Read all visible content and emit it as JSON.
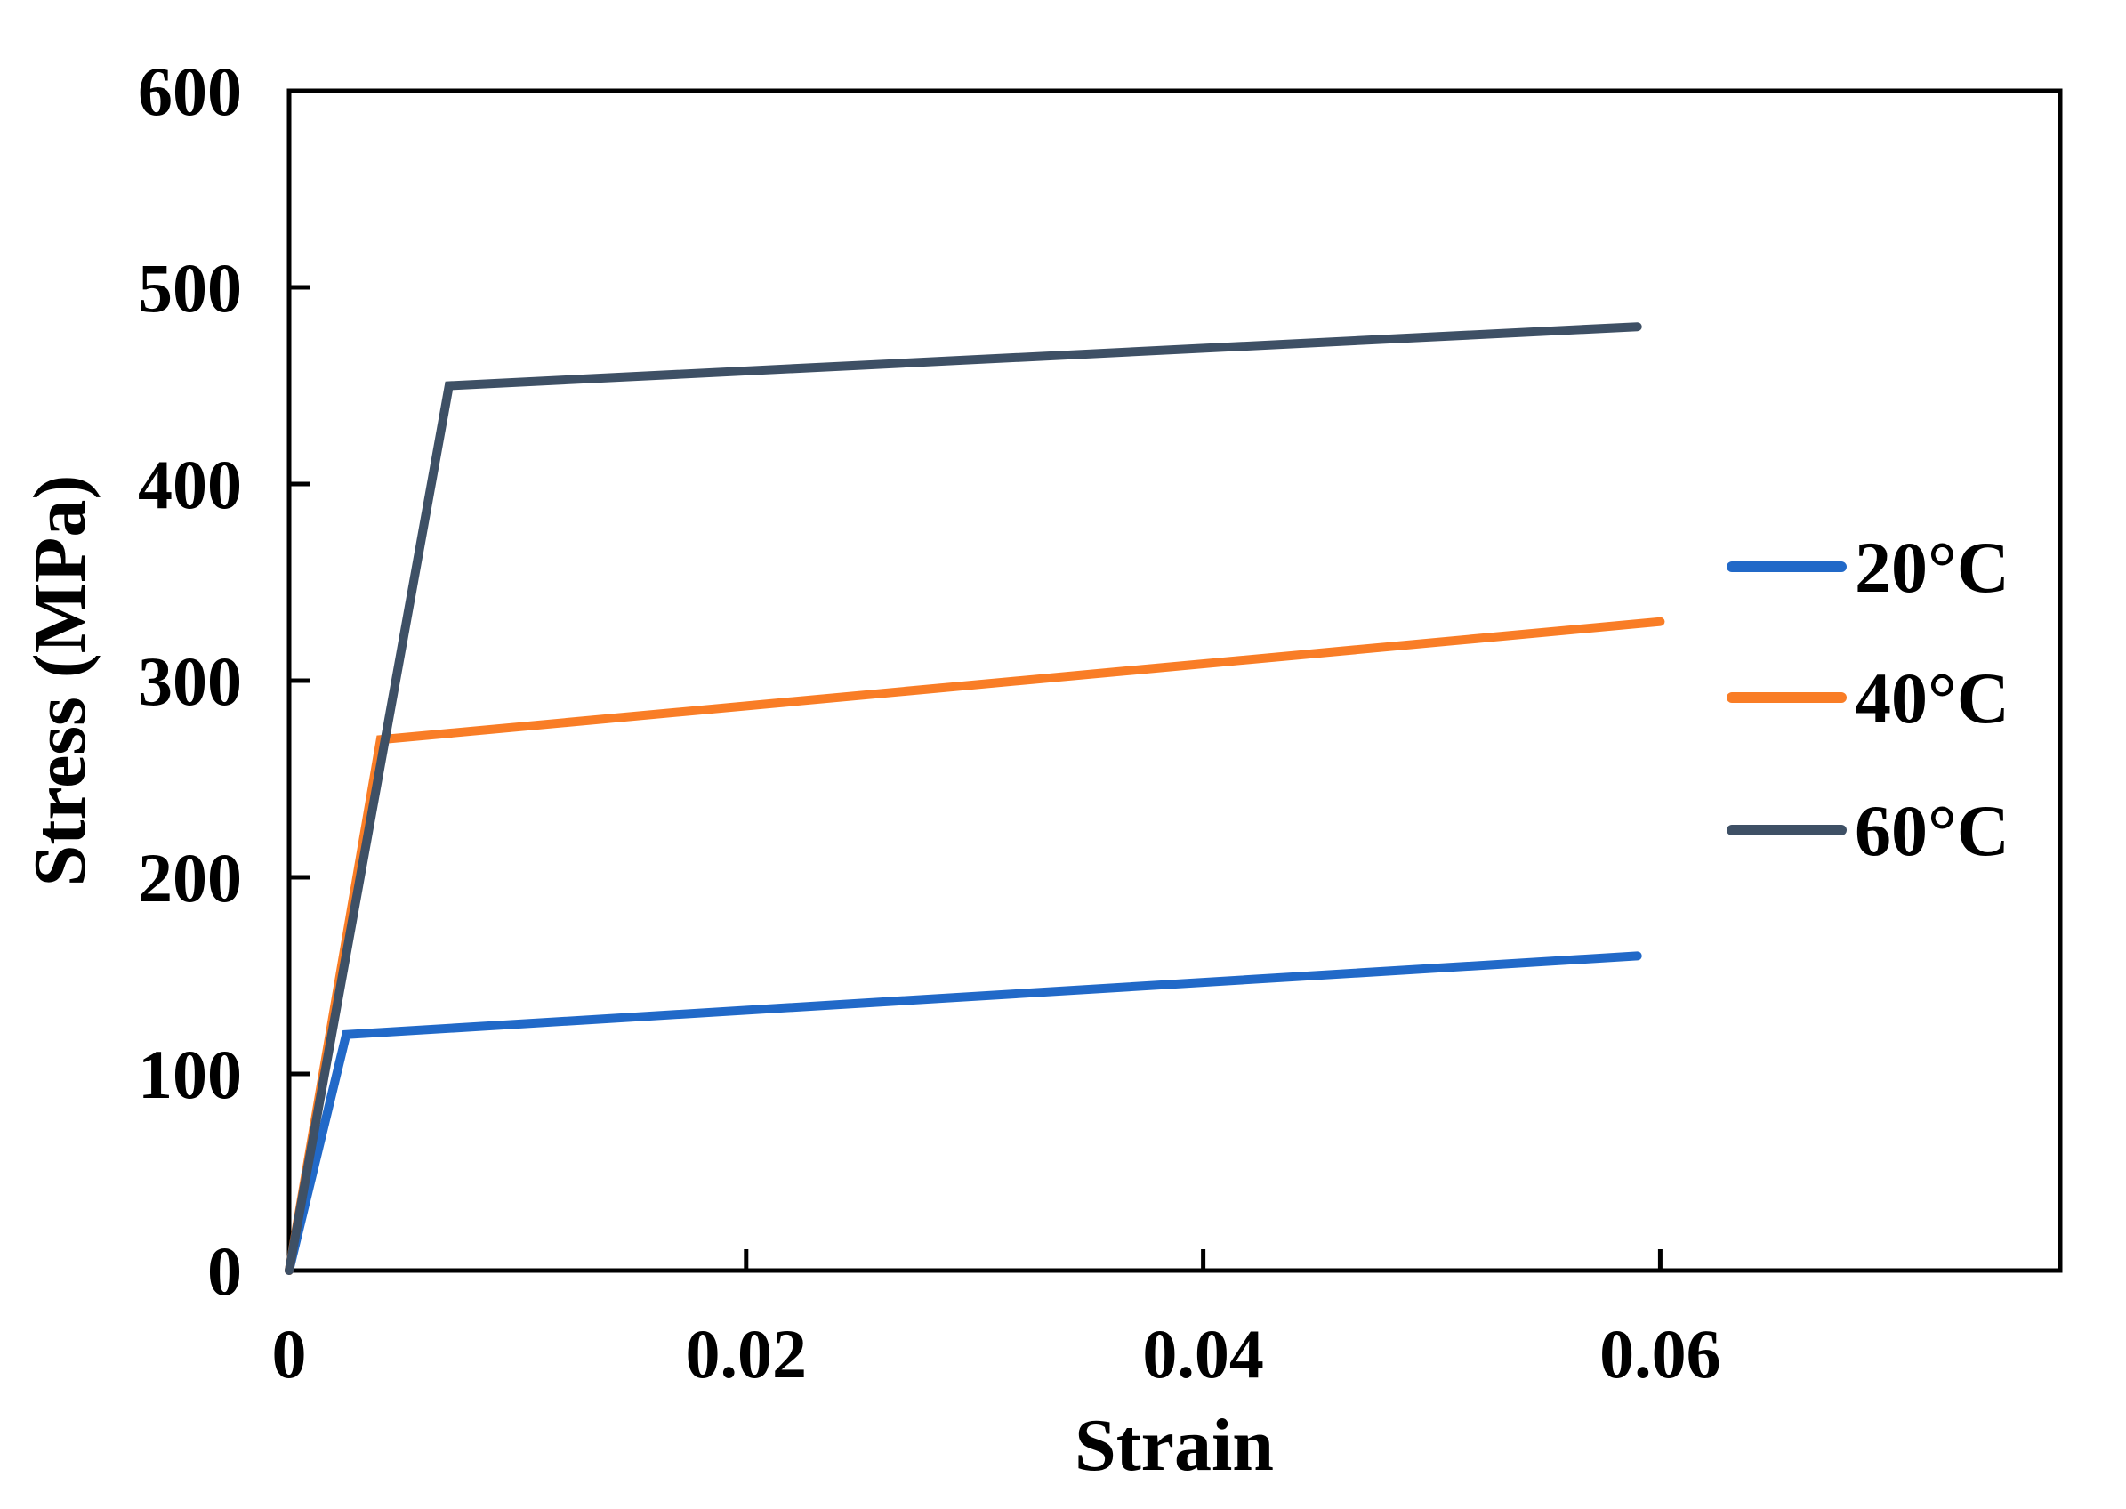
{
  "page": {
    "background": "#FFFFFF"
  },
  "chart_data": {
    "type": "line",
    "title": "",
    "xlabel": "Strain",
    "ylabel": "Stress (MPa)",
    "xlim": [
      0,
      0.0775
    ],
    "ylim": [
      0,
      600
    ],
    "grid": false,
    "axis_color": "#000000",
    "text_color": "#000000",
    "x_ticks": {
      "values": [
        0,
        0.02,
        0.04,
        0.06
      ],
      "labels": [
        "0",
        "0.02",
        "0.04",
        "0.06"
      ]
    },
    "y_ticks": {
      "values": [
        0,
        100,
        200,
        300,
        400,
        500,
        600
      ],
      "labels": [
        "0",
        "100",
        "200",
        "300",
        "400",
        "500",
        "600"
      ]
    },
    "legend": {
      "position": "inside-right",
      "entries": [
        "20°C",
        "40°C",
        "60°C"
      ]
    },
    "series": [
      {
        "name": "20°C",
        "color": "#2169C8",
        "points": [
          [
            0,
            0
          ],
          [
            0.0025,
            120
          ],
          [
            0.059,
            160
          ]
        ]
      },
      {
        "name": "40°C",
        "color": "#F97D26",
        "points": [
          [
            0,
            0
          ],
          [
            0.004,
            270
          ],
          [
            0.06,
            330
          ]
        ]
      },
      {
        "name": "60°C",
        "color": "#3E5065",
        "points": [
          [
            0,
            0
          ],
          [
            0.007,
            450
          ],
          [
            0.059,
            480
          ]
        ]
      }
    ]
  }
}
